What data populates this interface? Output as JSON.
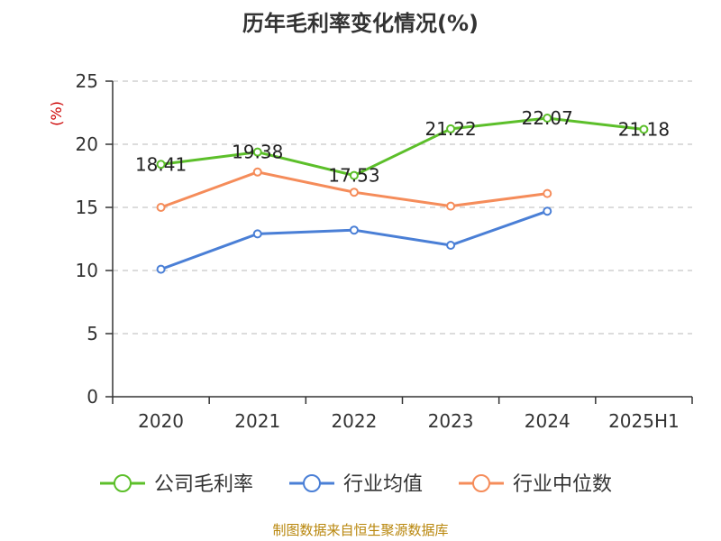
{
  "chart_data": {
    "type": "line",
    "title": "历年毛利率变化情况(%)",
    "ylabel": "(%)",
    "xlabel": "",
    "categories": [
      "2020",
      "2021",
      "2022",
      "2023",
      "2024",
      "2025H1"
    ],
    "ylim": [
      0,
      25
    ],
    "yticks": [
      0,
      5,
      10,
      15,
      20,
      25
    ],
    "grid": "horizontal-dashed",
    "legend_position": "bottom",
    "series": [
      {
        "name": "公司毛利率",
        "color": "#5cbf2a",
        "values": [
          18.41,
          19.38,
          17.53,
          21.22,
          22.07,
          21.18
        ],
        "show_labels": true
      },
      {
        "name": "行业均值",
        "color": "#4a7fd6",
        "values": [
          10.1,
          12.9,
          13.2,
          12.0,
          14.7,
          null
        ],
        "show_labels": false
      },
      {
        "name": "行业中位数",
        "color": "#f58c5a",
        "values": [
          15.0,
          17.8,
          16.2,
          15.1,
          16.1,
          null
        ],
        "show_labels": false
      }
    ]
  },
  "unit_color": "#cc0000",
  "source": "制图数据来自恒生聚源数据库"
}
